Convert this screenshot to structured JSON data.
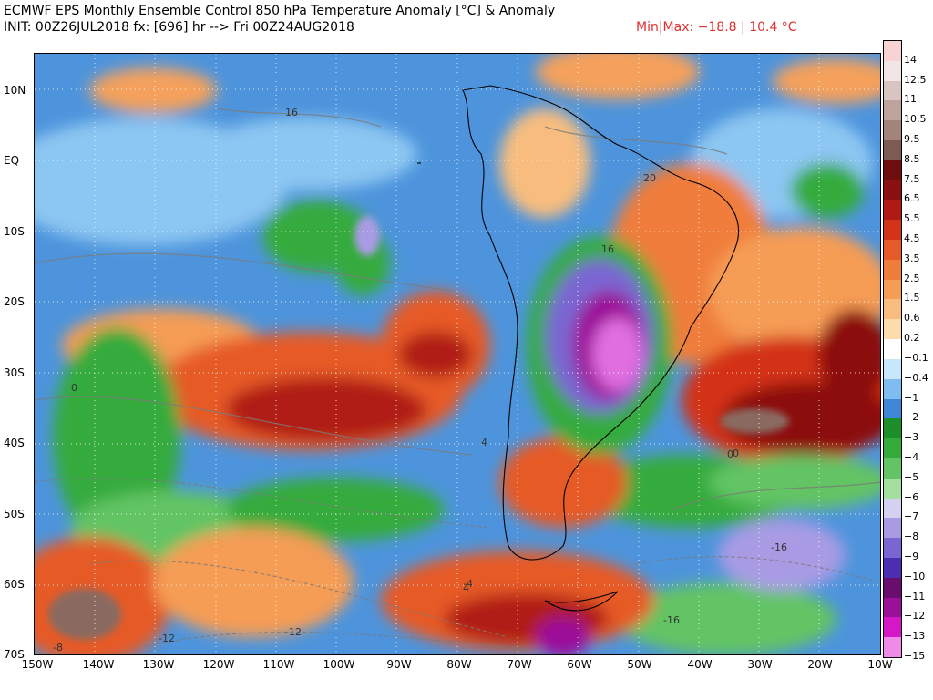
{
  "header": {
    "title": "ECMWF EPS Monthly Ensemble Control 850 hPa Temperature Anomaly [°C] & Anomaly",
    "subtitle": "INIT: 00Z26JUL2018 fx: [696] hr --> Fri 00Z24AUG2018",
    "minmax": "Min|Max: −18.8 | 10.4 °C"
  },
  "map": {
    "lat_labels": [
      "10N",
      "EQ",
      "10S",
      "20S",
      "30S",
      "40S",
      "50S",
      "60S",
      "70S"
    ],
    "lon_labels": [
      "150W",
      "140W",
      "130W",
      "120W",
      "110W",
      "100W",
      "90W",
      "80W",
      "70W",
      "60W",
      "50W",
      "40W",
      "30W",
      "20W",
      "10W"
    ],
    "region": "South America / South Pacific / South Atlantic",
    "contour_labels": [
      "16",
      "16",
      "20",
      "4",
      "0",
      "4",
      "0",
      "-4",
      "-8",
      "-12",
      "-12",
      "-16",
      "-16",
      "0"
    ]
  },
  "colorbar": {
    "levels": [
      {
        "label": "14",
        "color": "#f7d3d3"
      },
      {
        "label": "12.5",
        "color": "#f1e6e6"
      },
      {
        "label": "11",
        "color": "#d8c4c0"
      },
      {
        "label": "10.5",
        "color": "#bea39c"
      },
      {
        "label": "9.5",
        "color": "#a3847b"
      },
      {
        "label": "8.5",
        "color": "#7d5b52"
      },
      {
        "label": "7.5",
        "color": "#6e0d0d"
      },
      {
        "label": "6.5",
        "color": "#8c1010"
      },
      {
        "label": "5.5",
        "color": "#b01a12"
      },
      {
        "label": "4.5",
        "color": "#d33317"
      },
      {
        "label": "3.5",
        "color": "#e65a27"
      },
      {
        "label": "2.5",
        "color": "#f07d3b"
      },
      {
        "label": "1.5",
        "color": "#f59c55"
      },
      {
        "label": "0.6",
        "color": "#f8bd7e"
      },
      {
        "label": "0.2",
        "color": "#fbdcaa"
      },
      {
        "label": "−0.1",
        "color": "#ffffff"
      },
      {
        "label": "−0.4",
        "color": "#c9e7fa"
      },
      {
        "label": "−1",
        "color": "#7fbdf0"
      },
      {
        "label": "−2",
        "color": "#3f86d8"
      },
      {
        "label": "−3",
        "color": "#1c8f2b"
      },
      {
        "label": "−4",
        "color": "#35ab3c"
      },
      {
        "label": "−5",
        "color": "#62c464"
      },
      {
        "label": "−6",
        "color": "#a5dfa0"
      },
      {
        "label": "−7",
        "color": "#d4d1f1"
      },
      {
        "label": "−8",
        "color": "#a89be4"
      },
      {
        "label": "−9",
        "color": "#7a66d2"
      },
      {
        "label": "−10",
        "color": "#4a2fb0"
      },
      {
        "label": "−11",
        "color": "#6a0d6e"
      },
      {
        "label": "−12",
        "color": "#9b1099"
      },
      {
        "label": "−13",
        "color": "#d418c8"
      },
      {
        "label": "−15",
        "color": "#f08ae8"
      }
    ]
  }
}
